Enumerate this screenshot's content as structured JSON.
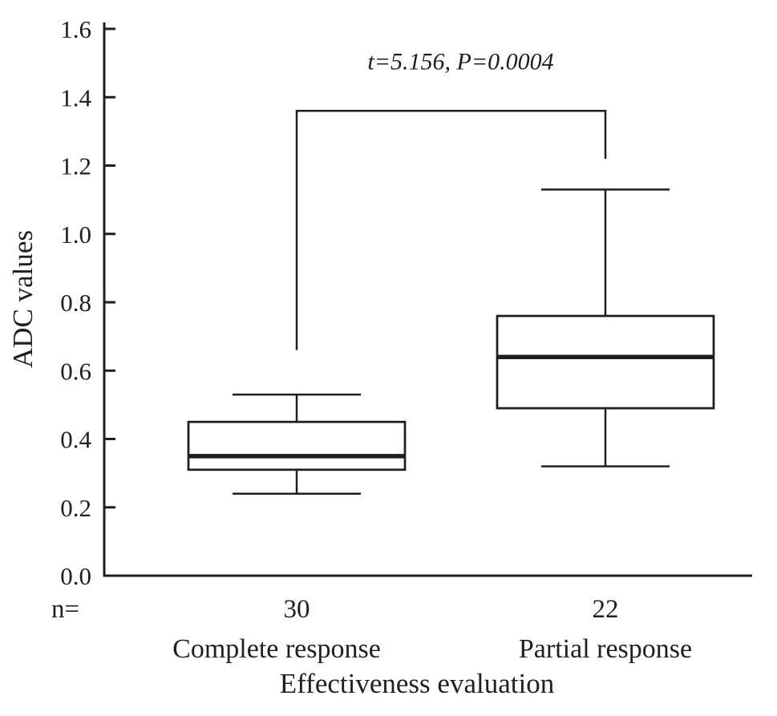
{
  "figure": {
    "background": "#ffffff",
    "ink_color": "#1f1f1f"
  },
  "chart_data": {
    "type": "box",
    "title": "",
    "annotation": "t=5.156, P=0.0004",
    "xlabel": "Effectiveness evaluation",
    "ylabel": "ADC values",
    "ylim": [
      0,
      1.6
    ],
    "yticks": [
      0,
      0.2,
      0.4,
      0.6,
      0.8,
      1.0,
      1.2,
      1.4,
      1.6
    ],
    "ytick_labels": [
      "0.0",
      "0.2",
      "0.4",
      "0.6",
      "0.8",
      "1.0",
      "1.2",
      "1.4",
      "1.6"
    ],
    "grid": false,
    "legend": false,
    "n_row": {
      "prefix": "n=",
      "values": [
        "30",
        "22"
      ]
    },
    "categories": [
      "Complete response",
      "Partial response"
    ],
    "series": [
      {
        "name": "Complete response",
        "n": 30,
        "whisker_low": 0.24,
        "q1": 0.31,
        "median": 0.35,
        "q3": 0.45,
        "whisker_high": 0.53
      },
      {
        "name": "Partial response",
        "n": 22,
        "whisker_low": 0.32,
        "q1": 0.49,
        "median": 0.64,
        "q3": 0.76,
        "whisker_high": 1.13
      }
    ],
    "significance_bracket": {
      "top": 1.36,
      "left_drop_to": 0.66,
      "right_drop_to": 1.22,
      "connects": [
        "Complete response",
        "Partial response"
      ]
    }
  }
}
